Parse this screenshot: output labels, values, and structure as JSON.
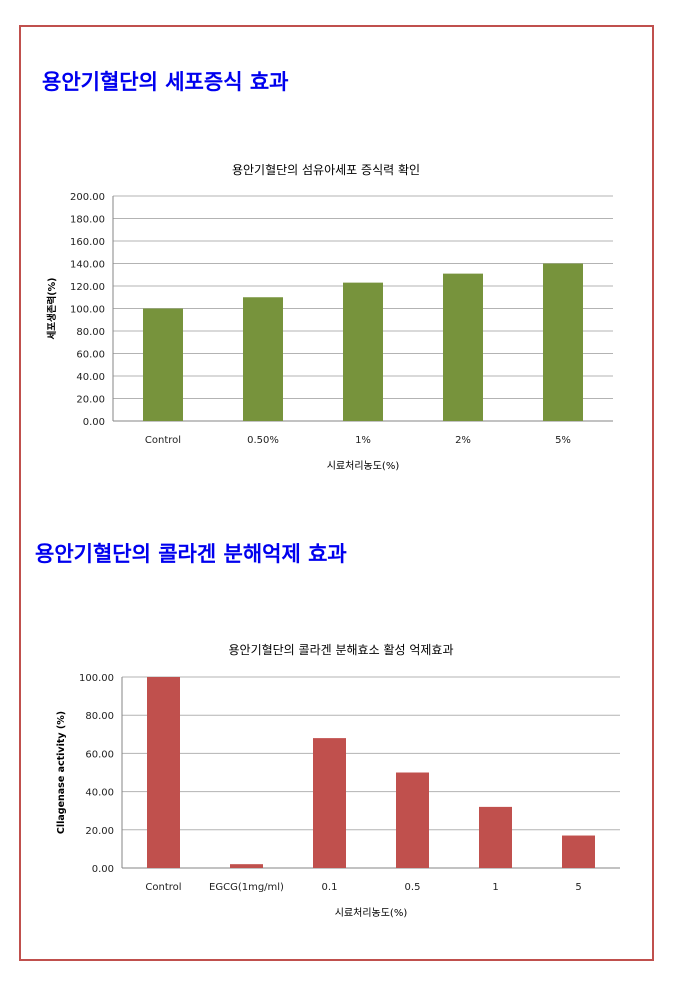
{
  "sections": [
    {
      "heading": "용안기혈단의 세포증식 효과"
    },
    {
      "heading": "용안기혈단의 콜라겐 분해억제 효과"
    }
  ],
  "colors": {
    "border": "#c0504d",
    "heading": "#0000ee",
    "bar1": "#77933c",
    "bar2": "#c0504d",
    "grid": "#b3b3b3"
  },
  "chart_data": [
    {
      "type": "bar",
      "title": "용안기혈단의 섬유아세포 증식력 확인",
      "xlabel": "시료처리농도(%)",
      "ylabel": "세포생존력(%)",
      "categories": [
        "Control",
        "0.50%",
        "1%",
        "2%",
        "5%"
      ],
      "values": [
        100,
        110,
        123,
        131,
        140
      ],
      "ylim": [
        0,
        200
      ],
      "yticks": [
        "0.00",
        "20.00",
        "40.00",
        "60.00",
        "80.00",
        "100.00",
        "120.00",
        "140.00",
        "160.00",
        "180.00",
        "200.00"
      ],
      "grid": true,
      "color": "#77933c"
    },
    {
      "type": "bar",
      "title": "용안기혈단의 콜라겐 분해효소 활성 억제효과",
      "xlabel": "시료처리농도(%)",
      "ylabel": "Cllagenase activity (%)",
      "categories": [
        "Control",
        "EGCG(1mg/ml)",
        "0.1",
        "0.5",
        "1",
        "5"
      ],
      "values": [
        100,
        2,
        68,
        50,
        32,
        17
      ],
      "ylim": [
        0,
        100
      ],
      "yticks": [
        "0.00",
        "20.00",
        "40.00",
        "60.00",
        "80.00",
        "100.00"
      ],
      "grid": true,
      "color": "#c0504d"
    }
  ]
}
